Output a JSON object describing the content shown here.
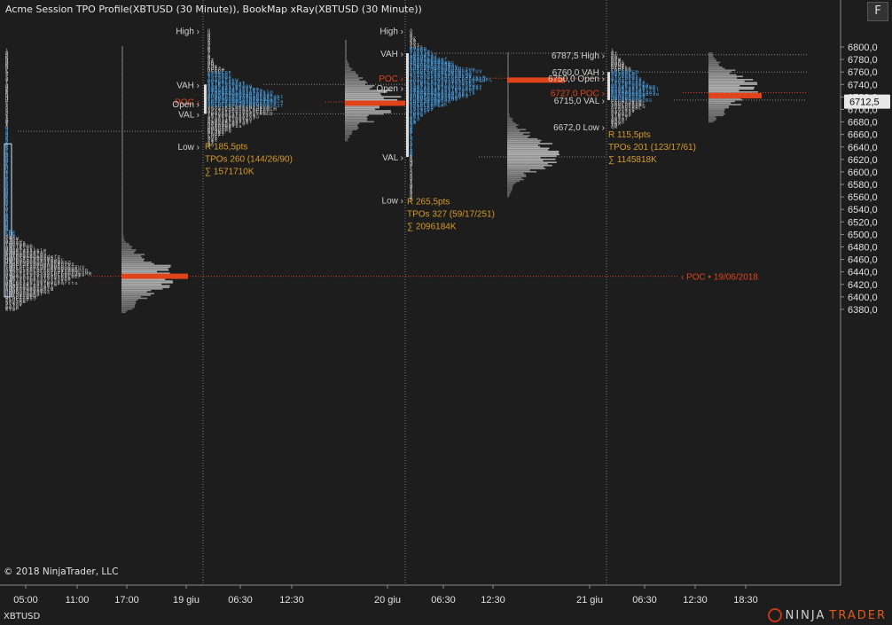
{
  "header": {
    "title": "Acme Session TPO Profile(XBTUSD (30 Minute)), BookMap xRay(XBTUSD (30 Minute))",
    "menu_button": "F"
  },
  "footer": {
    "copyright": "© 2018 NinjaTrader, LLC",
    "instrument": "XBTUSD",
    "brand_ninja": "NINJA",
    "brand_trader": "TRADER"
  },
  "price_axis": {
    "labels": [
      "6800,0",
      "6780,0",
      "6760,0",
      "6740,0",
      "6720,0",
      "6700,0",
      "6680,0",
      "6660,0",
      "6640,0",
      "6620,0",
      "6600,0",
      "6580,0",
      "6560,0",
      "6540,0",
      "6520,0",
      "6500,0",
      "6480,0",
      "6460,0",
      "6440,0",
      "6420,0",
      "6400,0",
      "6380,0"
    ],
    "current_price": "6712,5"
  },
  "time_axis": {
    "labels": [
      "05:00",
      "11:00",
      "17:00",
      "19 giu",
      "06:30",
      "12:30",
      "20 giu",
      "06:30",
      "12:30",
      "21 giu",
      "06:30",
      "12:30",
      "18:30"
    ]
  },
  "sessions": [
    {
      "markers": [
        "High",
        "VAH",
        "POC",
        "Open",
        "VAL",
        "Low"
      ],
      "stats": [
        "R 185,5pts",
        "TPOs 260 (144/26/90)",
        "∑ 1571710K"
      ]
    },
    {
      "markers": [
        "High",
        "VAH",
        "POC",
        "Open",
        "VAL",
        "Low"
      ],
      "stats": [
        "R 265,5pts",
        "TPOs 327 (59/17/251)",
        "∑ 2096184K"
      ]
    },
    {
      "markers": [
        "6787,5 High",
        "6760,0 VAH",
        "6750,0 Open",
        "6727,0 POC",
        "6715,0 VAL",
        "6672,0 Low"
      ],
      "stats": [
        "R 115,5pts",
        "TPOs 201 (123/17/61)",
        "∑ 1145818K"
      ]
    }
  ],
  "naked_poc_label": "‹ POC • 19/06/2018",
  "colors": {
    "background": "#1d1d1d",
    "poc": "#e0441c",
    "stats": "#d79a2a",
    "tpo_blue": "#4aa3e8",
    "tpo_white": "#d8d8d8",
    "volume_gray": "#8a8a8a"
  }
}
